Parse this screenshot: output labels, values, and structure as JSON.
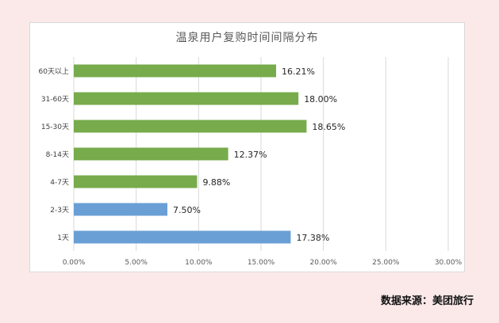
{
  "chart_data": {
    "type": "bar",
    "orientation": "horizontal",
    "title": "温泉用户复购时间间隔分布",
    "categories": [
      "60天以上",
      "31-60天",
      "15-30天",
      "8-14天",
      "4-7天",
      "2-3天",
      "1天"
    ],
    "values": [
      16.21,
      18.0,
      18.65,
      12.37,
      9.88,
      7.5,
      17.38
    ],
    "value_labels": [
      "16.21%",
      "18.00%",
      "18.65%",
      "12.37%",
      "9.88%",
      "7.50%",
      "17.38%"
    ],
    "bar_colors": [
      "#77ab4c",
      "#77ab4c",
      "#77ab4c",
      "#77ab4c",
      "#77ab4c",
      "#6a9fd6",
      "#6a9fd6"
    ],
    "xlim": [
      0,
      30
    ],
    "xticks": [
      "0.00%",
      "5.00%",
      "10.00%",
      "15.00%",
      "20.00%",
      "25.00%",
      "30.00%"
    ],
    "grid": true,
    "xlabel": "",
    "ylabel": ""
  },
  "source": "数据来源：美团旅行",
  "colors": {
    "background": "#fbe9ea",
    "green": "#77ab4c",
    "blue": "#6a9fd6",
    "grid": "#d9d9d9"
  }
}
